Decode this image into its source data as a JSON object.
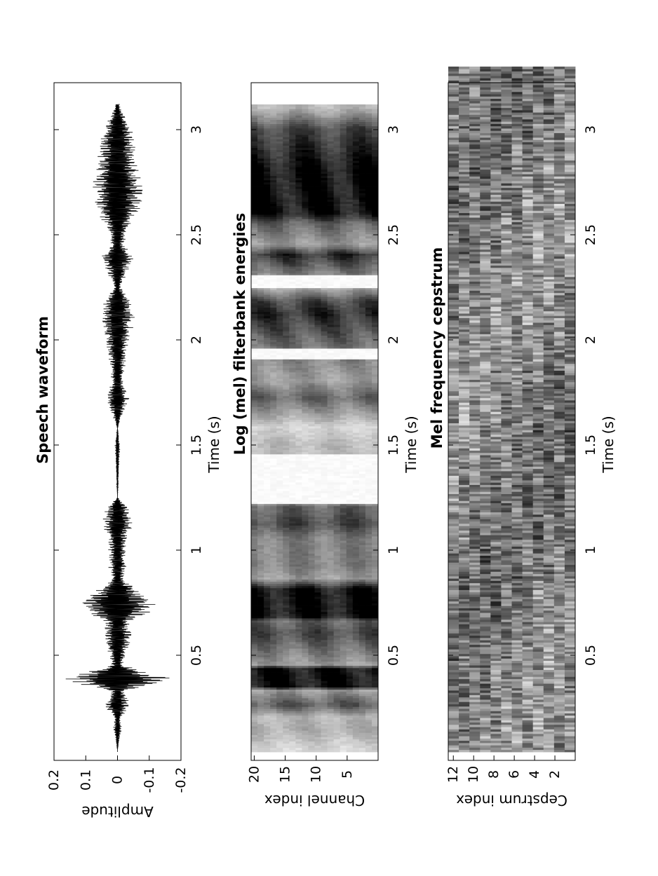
{
  "chart_data": [
    {
      "type": "line",
      "title": "Speech waveform",
      "xlabel": "Time (s)",
      "ylabel": "Amplitude",
      "xlim": [
        0,
        3.3
      ],
      "ylim": [
        -0.2,
        0.2
      ],
      "xticks": [
        0.5,
        1,
        1.5,
        2,
        2.5,
        3
      ],
      "xtick_labels": [
        "0.5",
        "1",
        "1.5",
        "2",
        "2.5",
        "3"
      ],
      "yticks": [
        0.2,
        0.1,
        0,
        -0.1,
        -0.2
      ],
      "ytick_labels": [
        "0.2",
        "0.1",
        "0",
        "-0.1",
        "-0.2"
      ],
      "envelope": {
        "time_s": [
          0.05,
          0.15,
          0.2,
          0.26,
          0.33,
          0.38,
          0.4,
          0.45,
          0.6,
          0.66,
          0.72,
          0.76,
          0.8,
          0.86,
          0.92,
          1.05,
          1.12,
          1.2,
          1.25,
          1.5,
          1.58,
          1.72,
          1.8,
          1.93,
          2.12,
          2.18,
          2.25,
          2.4,
          2.45,
          2.55,
          2.6,
          2.72,
          2.8,
          3.0,
          3.1
        ],
        "amplitude": [
          0.0,
          0.015,
          0.01,
          0.045,
          0.02,
          0.19,
          0.16,
          0.02,
          0.05,
          0.04,
          0.13,
          0.12,
          0.08,
          0.02,
          0.03,
          0.03,
          0.05,
          0.04,
          0.0,
          0.01,
          0.0,
          0.04,
          0.02,
          0.03,
          0.06,
          0.05,
          0.01,
          0.06,
          0.02,
          0.04,
          0.07,
          0.09,
          0.07,
          0.05,
          0.01
        ]
      }
    },
    {
      "type": "heatmap",
      "title": "Log (mel) filterbank energies",
      "xlabel": "Time (s)",
      "ylabel": "Channel index",
      "xlim": [
        0,
        3.3
      ],
      "ylim": [
        0,
        20.5
      ],
      "xticks": [
        0.5,
        1,
        1.5,
        2,
        2.5,
        3
      ],
      "xtick_labels": [
        "0.5",
        "1",
        "1.5",
        "2",
        "2.5",
        "3"
      ],
      "yticks": [
        20,
        15,
        10,
        5
      ],
      "ytick_labels": [
        "20",
        "15",
        "10",
        "5"
      ],
      "colormap": "gray (dark = high)",
      "rows": 20
    },
    {
      "type": "heatmap",
      "title": "Mel frequency cepstrum",
      "xlabel": "Time (s)",
      "ylabel": "Cepstrum index",
      "xlim": [
        0,
        3.3
      ],
      "ylim": [
        0,
        12.5
      ],
      "xticks": [
        0.5,
        1,
        1.5,
        2,
        2.5,
        3
      ],
      "xtick_labels": [
        "0.5",
        "1",
        "1.5",
        "2",
        "2.5",
        "3"
      ],
      "yticks": [
        12,
        10,
        8,
        6,
        4,
        2
      ],
      "ytick_labels": [
        "12",
        "10",
        "8",
        "6",
        "4",
        "2"
      ],
      "colormap": "gray",
      "rows": 12
    }
  ]
}
